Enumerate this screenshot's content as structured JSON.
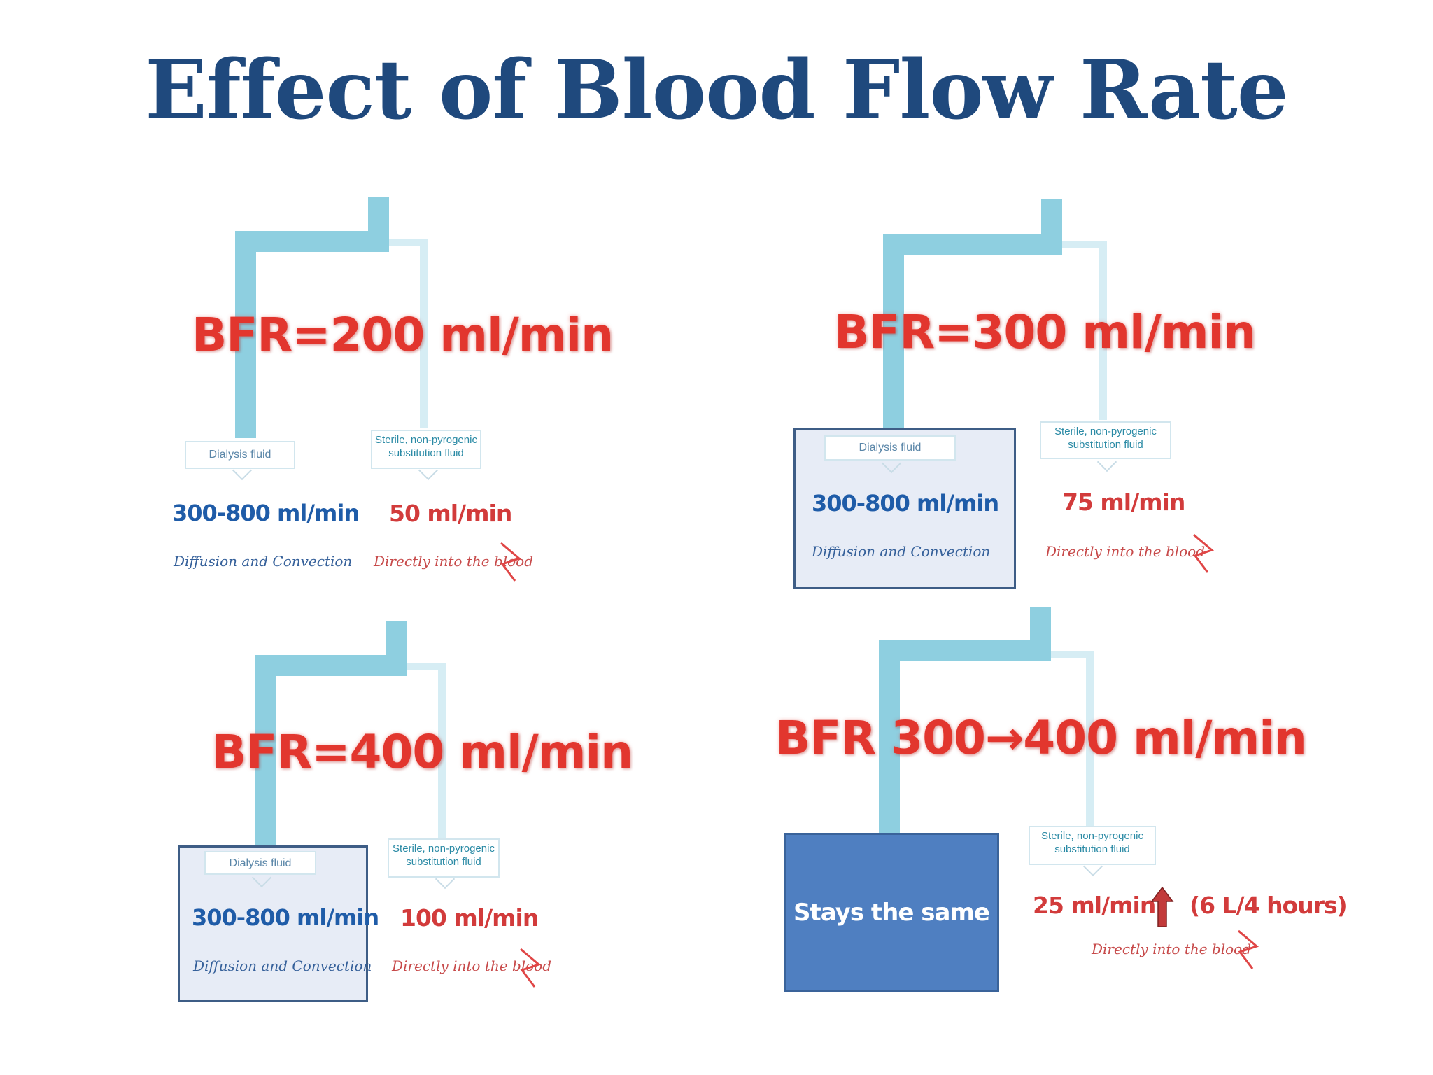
{
  "title": "Effect of Blood Flow Rate",
  "colors": {
    "title": "#1f497d",
    "bfr": "#e2362e",
    "pipe_main": "#8ecfe0",
    "pipe_light": "#d6edf4",
    "rate_blue": "#1f5ca8",
    "box_dark": "#4f7fc1"
  },
  "panels": [
    {
      "bfr": "BFR=200 ml/min",
      "dialysis_label": "Dialysis fluid",
      "substitution_label": "Sterile, non-pyrogenic substitution fluid",
      "dialysis_rate": "300-800 ml/min",
      "dialysis_note": "Diffusion and Convection",
      "substitution_rate": "50 ml/min",
      "substitution_note": "Directly into the blood"
    },
    {
      "bfr": "BFR=300 ml/min",
      "dialysis_label": "Dialysis fluid",
      "substitution_label": "Sterile, non-pyrogenic substitution fluid",
      "dialysis_rate": "300-800 ml/min",
      "dialysis_note": "Diffusion and Convection",
      "substitution_rate": "75 ml/min",
      "substitution_note": "Directly into the blood"
    },
    {
      "bfr": "BFR=400 ml/min",
      "dialysis_label": "Dialysis fluid",
      "substitution_label": "Sterile, non-pyrogenic substitution fluid",
      "dialysis_rate": "300-800 ml/min",
      "dialysis_note": "Diffusion and Convection",
      "substitution_rate": "100 ml/min",
      "substitution_note": "Directly into the blood"
    },
    {
      "bfr": "BFR 300→400 ml/min",
      "dialysis_box": "Stays the same",
      "substitution_label": "Sterile, non-pyrogenic substitution fluid",
      "substitution_rate": "25 ml/min",
      "extra": "(6 L/4 hours)",
      "substitution_note": "Directly into the blood",
      "arrow_icon": "up-arrow-icon"
    }
  ]
}
